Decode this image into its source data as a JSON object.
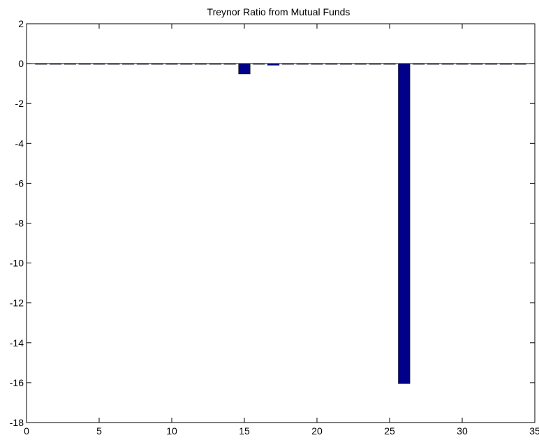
{
  "chart_data": {
    "type": "bar",
    "title": "Treynor Ratio from  Mutual Funds",
    "xlabel": "",
    "ylabel": "",
    "xlim": [
      0,
      35
    ],
    "ylim": [
      -18,
      2
    ],
    "xticks": [
      0,
      5,
      10,
      15,
      20,
      25,
      30,
      35
    ],
    "yticks": [
      2,
      0,
      -2,
      -4,
      -6,
      -8,
      -10,
      -12,
      -14,
      -16,
      -18
    ],
    "grid": false,
    "bar_color": "#00008B",
    "x": [
      1,
      2,
      3,
      4,
      5,
      6,
      7,
      8,
      9,
      10,
      11,
      12,
      13,
      14,
      15,
      16,
      17,
      18,
      19,
      20,
      21,
      22,
      23,
      24,
      25,
      26,
      27,
      28,
      29,
      30,
      31,
      32,
      33,
      34
    ],
    "values": [
      0,
      0,
      0,
      0,
      0,
      -0.02,
      0,
      -0.02,
      0,
      0,
      0,
      0,
      0,
      0,
      -0.52,
      0,
      -0.08,
      -0.02,
      0,
      0,
      -0.02,
      -0.02,
      0,
      0,
      -0.02,
      -16.05,
      0,
      0,
      -0.02,
      0,
      -0.02,
      0,
      0,
      0
    ]
  }
}
